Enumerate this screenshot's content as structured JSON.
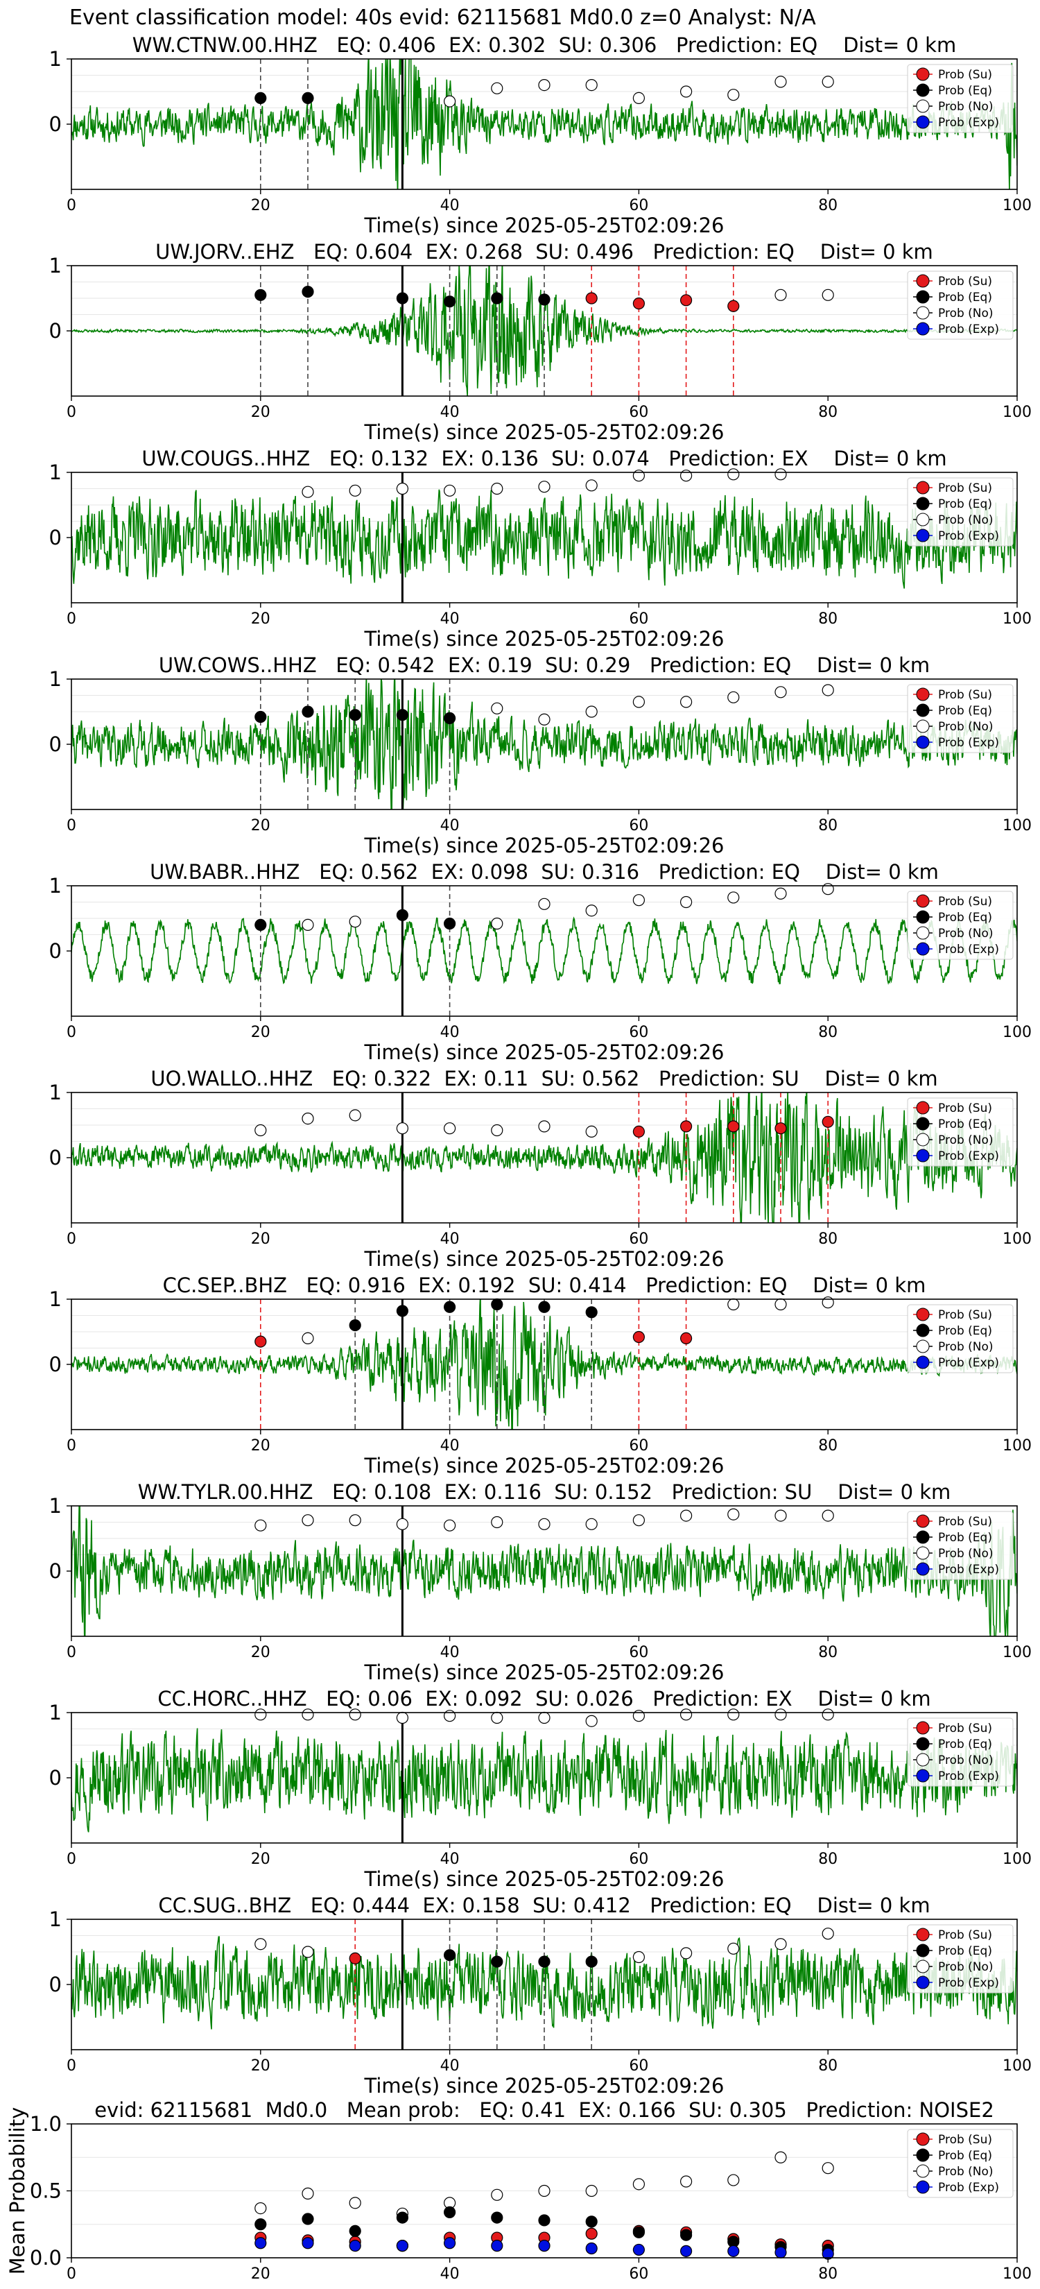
{
  "figure": {
    "suptitle": "Event classification model: 40s evid: 62115681 Md0.0 z=0 Analyst: N/A"
  },
  "legend_entries": [
    {
      "label": "Prob (Su)",
      "color": "#e31a1c",
      "filled": true
    },
    {
      "label": "Prob (Eq)",
      "color": "#000000",
      "filled": true
    },
    {
      "label": "Prob (No)",
      "color": "#ffffff",
      "filled": false
    },
    {
      "label": "Prob (Exp)",
      "color": "#0010e0",
      "filled": true
    }
  ],
  "colors": {
    "waveform": "#008000",
    "su": "#e31a1c",
    "eq": "#000000",
    "exp": "#0010e0",
    "pick_line": "#000000"
  },
  "chart_data": [
    {
      "type": "line",
      "title": "WW.CTNW.00.HHZ   EQ: 0.406  EX: 0.302  SU: 0.306   Prediction: EQ    Dist= 0 km",
      "xlabel": "Time(s) since 2025-05-25T02:09:26",
      "xlim": [
        0,
        100
      ],
      "ylim": [
        -1,
        1
      ],
      "xticks": [
        "0",
        "20",
        "40",
        "60",
        "80",
        "100"
      ],
      "yticks": [
        "1",
        "0"
      ],
      "pick_time": 35,
      "noise_level": 0.25,
      "seed": 11,
      "bursts": [
        {
          "t": 35,
          "width": 5,
          "amp": 0.95
        },
        {
          "t": 99.5,
          "width": 0.6,
          "amp": 0.9
        }
      ],
      "eq_points": [
        [
          20,
          0.4
        ],
        [
          25,
          0.4
        ]
      ],
      "su_points": [],
      "no_points": [
        [
          40,
          0.35
        ],
        [
          45,
          0.55
        ],
        [
          50,
          0.6
        ],
        [
          55,
          0.6
        ],
        [
          60,
          0.4
        ],
        [
          65,
          0.5
        ],
        [
          70,
          0.45
        ],
        [
          75,
          0.65
        ],
        [
          80,
          0.65
        ]
      ],
      "exp_points": [],
      "vlines": [
        {
          "x": 20,
          "cls": "eq"
        },
        {
          "x": 25,
          "cls": "eq"
        }
      ]
    },
    {
      "type": "line",
      "title": "UW.JORV..EHZ   EQ: 0.604  EX: 0.268  SU: 0.496   Prediction: EQ    Dist= 0 km",
      "xlabel": "Time(s) since 2025-05-25T02:09:26",
      "xlim": [
        0,
        100
      ],
      "ylim": [
        -1,
        1
      ],
      "xticks": [
        "0",
        "20",
        "40",
        "60",
        "80",
        "100"
      ],
      "yticks": [
        "1",
        "0"
      ],
      "pick_time": 35,
      "noise_level": 0.02,
      "seed": 23,
      "bursts": [
        {
          "t": 44,
          "width": 9,
          "amp": 0.95
        }
      ],
      "eq_points": [
        [
          20,
          0.55
        ],
        [
          25,
          0.6
        ],
        [
          35,
          0.5
        ],
        [
          40,
          0.45
        ],
        [
          45,
          0.5
        ],
        [
          50,
          0.48
        ]
      ],
      "su_points": [
        [
          55,
          0.5
        ],
        [
          60,
          0.42
        ],
        [
          65,
          0.47
        ],
        [
          70,
          0.38
        ]
      ],
      "no_points": [
        [
          75,
          0.55
        ],
        [
          80,
          0.55
        ]
      ],
      "exp_points": [],
      "vlines": [
        {
          "x": 20,
          "cls": "eq"
        },
        {
          "x": 25,
          "cls": "eq"
        },
        {
          "x": 40,
          "cls": "eq"
        },
        {
          "x": 45,
          "cls": "eq"
        },
        {
          "x": 50,
          "cls": "eq"
        },
        {
          "x": 55,
          "cls": "su"
        },
        {
          "x": 60,
          "cls": "su"
        },
        {
          "x": 65,
          "cls": "su"
        },
        {
          "x": 70,
          "cls": "su"
        }
      ]
    },
    {
      "type": "line",
      "title": "UW.COUGS..HHZ   EQ: 0.132  EX: 0.136  SU: 0.074   Prediction: EX    Dist= 0 km",
      "xlabel": "Time(s) since 2025-05-25T02:09:26",
      "xlim": [
        0,
        100
      ],
      "ylim": [
        -1,
        1
      ],
      "xticks": [
        "0",
        "20",
        "40",
        "60",
        "80",
        "100"
      ],
      "yticks": [
        "1",
        "0"
      ],
      "pick_time": 35,
      "noise_level": 0.55,
      "seed": 37,
      "bursts": [],
      "eq_points": [],
      "su_points": [],
      "no_points": [
        [
          25,
          0.7
        ],
        [
          30,
          0.72
        ],
        [
          35,
          0.75
        ],
        [
          40,
          0.72
        ],
        [
          45,
          0.75
        ],
        [
          50,
          0.78
        ],
        [
          55,
          0.8
        ],
        [
          60,
          0.95
        ],
        [
          65,
          0.95
        ],
        [
          70,
          0.97
        ],
        [
          75,
          0.97
        ]
      ],
      "exp_points": [],
      "vlines": []
    },
    {
      "type": "line",
      "title": "UW.COWS..HHZ   EQ: 0.542  EX: 0.19  SU: 0.29   Prediction: EQ    Dist= 0 km",
      "xlabel": "Time(s) since 2025-05-25T02:09:26",
      "xlim": [
        0,
        100
      ],
      "ylim": [
        -1,
        1
      ],
      "xticks": [
        "0",
        "20",
        "40",
        "60",
        "80",
        "100"
      ],
      "yticks": [
        "1",
        "0"
      ],
      "pick_time": 35,
      "noise_level": 0.3,
      "seed": 41,
      "bursts": [
        {
          "t": 33,
          "width": 8,
          "amp": 0.7
        }
      ],
      "eq_points": [
        [
          20,
          0.42
        ],
        [
          25,
          0.5
        ],
        [
          30,
          0.45
        ],
        [
          35,
          0.45
        ],
        [
          40,
          0.4
        ]
      ],
      "su_points": [],
      "no_points": [
        [
          45,
          0.55
        ],
        [
          50,
          0.38
        ],
        [
          55,
          0.5
        ],
        [
          60,
          0.65
        ],
        [
          65,
          0.65
        ],
        [
          70,
          0.72
        ],
        [
          75,
          0.8
        ],
        [
          80,
          0.83
        ]
      ],
      "exp_points": [],
      "vlines": [
        {
          "x": 20,
          "cls": "eq"
        },
        {
          "x": 25,
          "cls": "eq"
        },
        {
          "x": 30,
          "cls": "eq"
        },
        {
          "x": 40,
          "cls": "eq"
        }
      ]
    },
    {
      "type": "line",
      "title": "UW.BABR..HHZ   EQ: 0.562  EX: 0.098  SU: 0.316   Prediction: EQ    Dist= 0 km",
      "xlabel": "Time(s) since 2025-05-25T02:09:26",
      "xlim": [
        0,
        100
      ],
      "ylim": [
        -1,
        1
      ],
      "xticks": [
        "0",
        "20",
        "40",
        "60",
        "80",
        "100"
      ],
      "yticks": [
        "1",
        "0"
      ],
      "pick_time": 35,
      "noise_level": 0.55,
      "seed": 53,
      "smooth": true,
      "bursts": [],
      "eq_points": [
        [
          20,
          0.4
        ],
        [
          35,
          0.55
        ],
        [
          40,
          0.42
        ]
      ],
      "su_points": [],
      "no_points": [
        [
          25,
          0.4
        ],
        [
          30,
          0.45
        ],
        [
          45,
          0.42
        ],
        [
          50,
          0.72
        ],
        [
          55,
          0.62
        ],
        [
          60,
          0.78
        ],
        [
          65,
          0.75
        ],
        [
          70,
          0.82
        ],
        [
          75,
          0.88
        ],
        [
          80,
          0.95
        ]
      ],
      "exp_points": [],
      "vlines": [
        {
          "x": 20,
          "cls": "eq"
        },
        {
          "x": 40,
          "cls": "eq"
        }
      ]
    },
    {
      "type": "line",
      "title": "UO.WALLO..HHZ   EQ: 0.322  EX: 0.11  SU: 0.562   Prediction: SU    Dist= 0 km",
      "xlabel": "Time(s) since 2025-05-25T02:09:26",
      "xlim": [
        0,
        100
      ],
      "ylim": [
        -1,
        1
      ],
      "xticks": [
        "0",
        "20",
        "40",
        "60",
        "80",
        "100"
      ],
      "yticks": [
        "1",
        "0"
      ],
      "pick_time": 35,
      "noise_level": 0.18,
      "seed": 61,
      "bursts": [
        {
          "t": 73,
          "width": 8,
          "amp": 0.8
        },
        {
          "t": 90,
          "width": 12,
          "amp": 0.4
        }
      ],
      "eq_points": [],
      "su_points": [
        [
          60,
          0.4
        ],
        [
          65,
          0.48
        ],
        [
          70,
          0.48
        ],
        [
          75,
          0.45
        ],
        [
          80,
          0.55
        ]
      ],
      "no_points": [
        [
          20,
          0.42
        ],
        [
          25,
          0.6
        ],
        [
          30,
          0.65
        ],
        [
          35,
          0.45
        ],
        [
          40,
          0.45
        ],
        [
          45,
          0.42
        ],
        [
          50,
          0.48
        ],
        [
          55,
          0.4
        ]
      ],
      "exp_points": [],
      "vlines": [
        {
          "x": 60,
          "cls": "su"
        },
        {
          "x": 65,
          "cls": "su"
        },
        {
          "x": 70,
          "cls": "su"
        },
        {
          "x": 75,
          "cls": "su"
        },
        {
          "x": 80,
          "cls": "su"
        }
      ]
    },
    {
      "type": "line",
      "title": "CC.SEP..BHZ   EQ: 0.916  EX: 0.192  SU: 0.414   Prediction: EQ    Dist= 0 km",
      "xlabel": "Time(s) since 2025-05-25T02:09:26",
      "xlim": [
        0,
        100
      ],
      "ylim": [
        -1,
        1
      ],
      "xticks": [
        "0",
        "20",
        "40",
        "60",
        "80",
        "100"
      ],
      "yticks": [
        "1",
        "0"
      ],
      "pick_time": 35,
      "noise_level": 0.12,
      "seed": 71,
      "bursts": [
        {
          "t": 47,
          "width": 6,
          "amp": 0.85
        },
        {
          "t": 36,
          "width": 6,
          "amp": 0.4
        }
      ],
      "eq_points": [
        [
          30,
          0.6
        ],
        [
          35,
          0.82
        ],
        [
          40,
          0.88
        ],
        [
          45,
          0.92
        ],
        [
          50,
          0.88
        ],
        [
          55,
          0.8
        ]
      ],
      "su_points": [
        [
          20,
          0.35
        ],
        [
          60,
          0.42
        ],
        [
          65,
          0.4
        ]
      ],
      "no_points": [
        [
          25,
          0.4
        ],
        [
          70,
          0.92
        ],
        [
          75,
          0.92
        ],
        [
          80,
          0.95
        ]
      ],
      "exp_points": [],
      "vlines": [
        {
          "x": 20,
          "cls": "su"
        },
        {
          "x": 30,
          "cls": "eq"
        },
        {
          "x": 40,
          "cls": "eq"
        },
        {
          "x": 45,
          "cls": "eq"
        },
        {
          "x": 50,
          "cls": "eq"
        },
        {
          "x": 55,
          "cls": "eq"
        },
        {
          "x": 60,
          "cls": "su"
        },
        {
          "x": 65,
          "cls": "su"
        }
      ]
    },
    {
      "type": "line",
      "title": "WW.TYLR.00.HHZ   EQ: 0.108  EX: 0.116  SU: 0.152   Prediction: SU    Dist= 0 km",
      "xlabel": "Time(s) since 2025-05-25T02:09:26",
      "xlim": [
        0,
        100
      ],
      "ylim": [
        -1,
        1
      ],
      "xticks": [
        "0",
        "20",
        "40",
        "60",
        "80",
        "100"
      ],
      "yticks": [
        "1",
        "0"
      ],
      "pick_time": 35,
      "noise_level": 0.35,
      "seed": 83,
      "bursts": [
        {
          "t": 1,
          "width": 1.5,
          "amp": 0.8
        },
        {
          "t": 98,
          "width": 2,
          "amp": 0.7
        }
      ],
      "eq_points": [],
      "su_points": [],
      "no_points": [
        [
          20,
          0.7
        ],
        [
          25,
          0.78
        ],
        [
          30,
          0.78
        ],
        [
          35,
          0.72
        ],
        [
          40,
          0.7
        ],
        [
          45,
          0.75
        ],
        [
          50,
          0.72
        ],
        [
          55,
          0.72
        ],
        [
          60,
          0.78
        ],
        [
          65,
          0.85
        ],
        [
          70,
          0.87
        ],
        [
          75,
          0.85
        ],
        [
          80,
          0.85
        ]
      ],
      "exp_points": [],
      "vlines": []
    },
    {
      "type": "line",
      "title": "CC.HORC..HHZ   EQ: 0.06  EX: 0.092  SU: 0.026   Prediction: EX    Dist= 0 km",
      "xlabel": "Time(s) since 2025-05-25T02:09:26",
      "xlim": [
        0,
        100
      ],
      "ylim": [
        -1,
        1
      ],
      "xticks": [
        "0",
        "20",
        "40",
        "60",
        "80",
        "100"
      ],
      "yticks": [
        "1",
        "0"
      ],
      "pick_time": 35,
      "noise_level": 0.55,
      "seed": 97,
      "bursts": [],
      "eq_points": [],
      "su_points": [],
      "no_points": [
        [
          20,
          0.97
        ],
        [
          25,
          0.97
        ],
        [
          30,
          0.97
        ],
        [
          35,
          0.92
        ],
        [
          40,
          0.95
        ],
        [
          45,
          0.92
        ],
        [
          50,
          0.92
        ],
        [
          55,
          0.87
        ],
        [
          60,
          0.95
        ],
        [
          65,
          0.97
        ],
        [
          70,
          0.97
        ],
        [
          75,
          0.97
        ],
        [
          80,
          0.97
        ]
      ],
      "exp_points": [],
      "vlines": []
    },
    {
      "type": "line",
      "title": "CC.SUG..BHZ   EQ: 0.444  EX: 0.158  SU: 0.412   Prediction: EQ    Dist= 0 km",
      "xlabel": "Time(s) since 2025-05-25T02:09:26",
      "xlim": [
        0,
        100
      ],
      "ylim": [
        -1,
        1
      ],
      "xticks": [
        "0",
        "20",
        "40",
        "60",
        "80",
        "100"
      ],
      "yticks": [
        "1",
        "0"
      ],
      "pick_time": 35,
      "noise_level": 0.5,
      "seed": 109,
      "bursts": [],
      "eq_points": [
        [
          40,
          0.45
        ],
        [
          45,
          0.35
        ],
        [
          50,
          0.35
        ],
        [
          55,
          0.35
        ]
      ],
      "su_points": [
        [
          30,
          0.4
        ]
      ],
      "no_points": [
        [
          20,
          0.62
        ],
        [
          25,
          0.5
        ],
        [
          60,
          0.42
        ],
        [
          65,
          0.48
        ],
        [
          70,
          0.55
        ],
        [
          75,
          0.62
        ],
        [
          80,
          0.78
        ]
      ],
      "exp_points": [],
      "vlines": [
        {
          "x": 30,
          "cls": "su"
        },
        {
          "x": 40,
          "cls": "eq"
        },
        {
          "x": 45,
          "cls": "eq"
        },
        {
          "x": 50,
          "cls": "eq"
        },
        {
          "x": 55,
          "cls": "eq"
        }
      ]
    },
    {
      "type": "scatter",
      "title": "evid: 62115681  Md0.0   Mean prob:   EQ: 0.41  EX: 0.166  SU: 0.305   Prediction: NOISE2",
      "xlabel": "",
      "ylabel": "Mean Probability",
      "xlim": [
        0,
        100
      ],
      "ylim": [
        0,
        1
      ],
      "xticks": [
        "0",
        "20",
        "40",
        "60",
        "80",
        "100"
      ],
      "yticks": [
        "1.0",
        "0.5",
        "0.0"
      ],
      "series": [
        {
          "name": "Prob (Su)",
          "x": [
            20,
            25,
            30,
            35,
            40,
            45,
            50,
            55,
            60,
            65,
            70,
            75,
            80
          ],
          "y": [
            0.15,
            0.13,
            0.12,
            0.09,
            0.15,
            0.15,
            0.15,
            0.18,
            0.2,
            0.19,
            0.14,
            0.1,
            0.09
          ]
        },
        {
          "name": "Prob (Eq)",
          "x": [
            20,
            25,
            30,
            35,
            40,
            45,
            50,
            55,
            60,
            65,
            70,
            75,
            80
          ],
          "y": [
            0.25,
            0.29,
            0.2,
            0.3,
            0.34,
            0.3,
            0.28,
            0.27,
            0.19,
            0.17,
            0.12,
            0.08,
            0.06
          ]
        },
        {
          "name": "Prob (No)",
          "x": [
            20,
            25,
            30,
            35,
            40,
            45,
            50,
            55,
            60,
            65,
            70,
            75,
            80
          ],
          "y": [
            0.37,
            0.48,
            0.41,
            0.33,
            0.41,
            0.47,
            0.5,
            0.5,
            0.55,
            0.57,
            0.58,
            0.75,
            0.67
          ]
        },
        {
          "name": "Prob (Exp)",
          "x": [
            20,
            25,
            30,
            35,
            40,
            45,
            50,
            55,
            60,
            65,
            70,
            75,
            80
          ],
          "y": [
            0.11,
            0.11,
            0.09,
            0.09,
            0.11,
            0.09,
            0.09,
            0.07,
            0.06,
            0.05,
            0.05,
            0.04,
            0.03
          ]
        }
      ]
    }
  ]
}
